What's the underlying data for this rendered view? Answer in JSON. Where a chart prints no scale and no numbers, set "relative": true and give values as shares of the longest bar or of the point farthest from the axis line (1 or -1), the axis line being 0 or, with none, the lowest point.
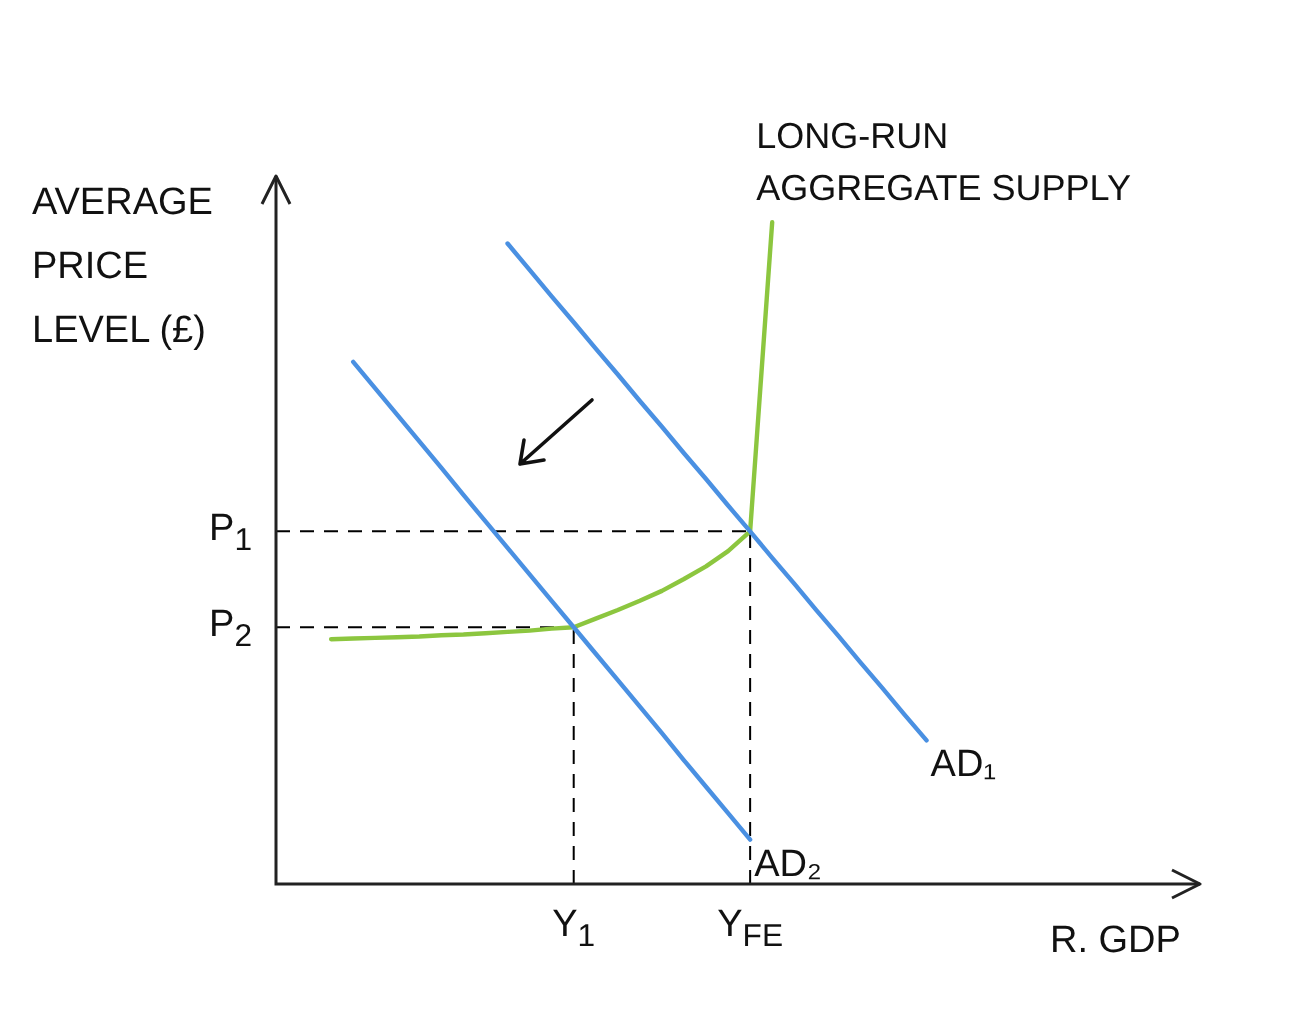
{
  "chart_data": {
    "type": "line",
    "relative": true,
    "xlabel": "R. GDP",
    "ylabel": "AVERAGE PRICE LEVEL (£)",
    "tick_labels": "x",
    "grid": false,
    "legend": false,
    "marker": "none",
    "line_style": "solid",
    "categories": [
      null,
      null,
      null,
      null,
      null,
      null,
      null,
      null,
      null,
      null,
      null,
      null,
      "Y$_{1}$",
      null,
      null,
      null,
      null,
      null,
      null,
      null,
      "Y$_{FE}$",
      null,
      null,
      null,
      null,
      null,
      null,
      null,
      null,
      null,
      null,
      null,
      null,
      null,
      null,
      null,
      null,
      null,
      null,
      null,
      null
    ],
    "series": [
      {
        "name": "AD₁",
        "color": "#4a90e2",
        "values": [
          null,
          null,
          null,
          null,
          null,
          null,
          null,
          null,
          null,
          0.968,
          0.928,
          0.888,
          0.849,
          0.809,
          0.77,
          0.73,
          0.691,
          0.651,
          0.612,
          0.572,
          0.533,
          0.493,
          0.454,
          0.414,
          0.375,
          0.335,
          0.296,
          0.256,
          0.217,
          null,
          null,
          null,
          null,
          null,
          null,
          null,
          null,
          null,
          null,
          null,
          null
        ]
      },
      {
        "name": "AD₂",
        "color": "#4a90e2",
        "values": [
          null,
          null,
          0.789,
          0.749,
          0.709,
          0.669,
          0.629,
          0.588,
          0.548,
          0.508,
          0.468,
          0.428,
          0.388,
          0.348,
          0.308,
          0.268,
          0.228,
          0.187,
          0.147,
          0.107,
          0.067,
          null,
          null,
          null,
          null,
          null,
          null,
          null,
          null,
          null,
          null,
          null,
          null,
          null,
          null,
          null,
          null,
          null,
          null,
          null,
          null
        ]
      },
      {
        "name": "LONG-RUN AGGREGATE SUPPLY",
        "color": "#8cc63f",
        "values": [
          null,
          0.37,
          0.371,
          0.372,
          0.373,
          0.374,
          0.376,
          0.377,
          0.379,
          0.381,
          0.383,
          0.386,
          0.388,
          0.401,
          0.414,
          0.428,
          0.443,
          0.461,
          0.48,
          0.503,
          0.533,
          1.0,
          null,
          null,
          null,
          null,
          null,
          null,
          null,
          null,
          null,
          null,
          null,
          null,
          null,
          null,
          null,
          null,
          null,
          null,
          null
        ]
      }
    ],
    "ref_lines": [
      {
        "axis": "y",
        "value": 0.533,
        "label": "P$_{1}$",
        "line_style": "dashed",
        "color": "#000000"
      },
      {
        "axis": "y",
        "value": 0.388,
        "label": "P$_{2}$",
        "line_style": "dashed",
        "color": "#000000"
      },
      {
        "axis": "x",
        "value": "Y$_{1}$",
        "line_style": "dashed",
        "color": "#000000"
      },
      {
        "axis": "x",
        "value": "Y$_{FE}$",
        "line_style": "dashed",
        "color": "#000000"
      }
    ]
  }
}
